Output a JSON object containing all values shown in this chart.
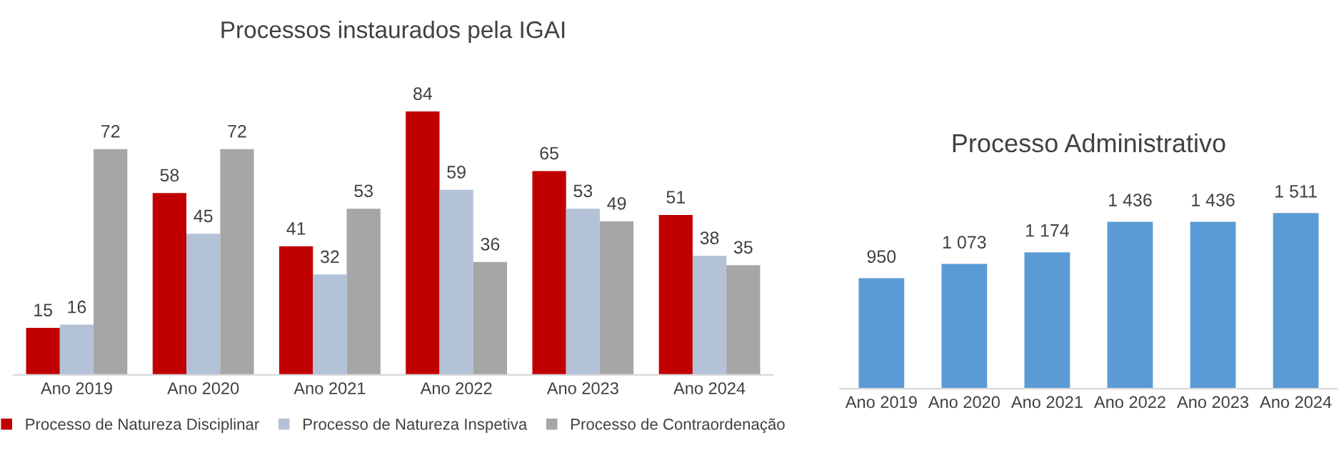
{
  "chart_data": [
    {
      "type": "bar",
      "title": "Processos instaurados pela IGAI",
      "categories": [
        "Ano 2019",
        "Ano 2020",
        "Ano 2021",
        "Ano 2022",
        "Ano 2023",
        "Ano 2024"
      ],
      "legend": "bottom",
      "data_labels": true,
      "series": [
        {
          "name": "Processo de Natureza Disciplinar",
          "color": "#c00000",
          "values": [
            15,
            58,
            41,
            84,
            65,
            51
          ]
        },
        {
          "name": "Processo de Natureza Inspetiva",
          "color": "#b4c2d8",
          "values": [
            16,
            45,
            32,
            59,
            53,
            38
          ]
        },
        {
          "name": "Processo de Contraordenação",
          "color": "#a6a6a6",
          "values": [
            72,
            72,
            53,
            36,
            49,
            35
          ]
        }
      ]
    },
    {
      "type": "bar",
      "title": "Processo Administrativo",
      "categories": [
        "Ano 2019",
        "Ano 2020",
        "Ano 2021",
        "Ano 2022",
        "Ano 2023",
        "Ano 2024"
      ],
      "values": [
        950,
        1073,
        1174,
        1436,
        1436,
        1511
      ],
      "value_labels": [
        "950",
        "1 073",
        "1 174",
        "1 436",
        "1 436",
        "1 511"
      ],
      "color": "#5b9bd5"
    }
  ]
}
